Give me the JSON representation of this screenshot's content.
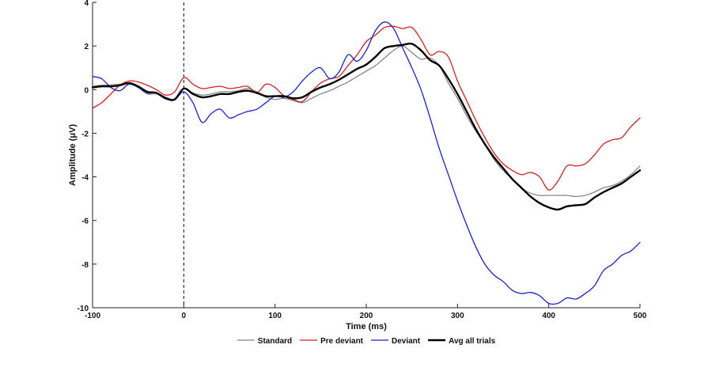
{
  "chart_data": {
    "type": "line",
    "xlabel": "Time (ms)",
    "ylabel": "Amplitude (μV)",
    "xlim": [
      -100,
      500
    ],
    "ylim": [
      -10,
      4
    ],
    "xticks": [
      -100,
      0,
      100,
      200,
      300,
      400,
      500
    ],
    "yticks": [
      -10,
      -8,
      -6,
      -4,
      -2,
      0,
      2,
      4
    ],
    "grid": false,
    "legend_position": "bottom",
    "reference_line": {
      "x": 0,
      "style": "dashed"
    },
    "x": [
      -100,
      -90,
      -80,
      -70,
      -60,
      -50,
      -40,
      -30,
      -20,
      -10,
      0,
      10,
      20,
      30,
      40,
      50,
      60,
      70,
      80,
      90,
      100,
      110,
      120,
      130,
      140,
      150,
      160,
      170,
      180,
      190,
      200,
      210,
      220,
      230,
      240,
      250,
      260,
      270,
      280,
      290,
      300,
      310,
      320,
      330,
      340,
      350,
      360,
      370,
      380,
      390,
      400,
      410,
      420,
      430,
      440,
      450,
      460,
      470,
      480,
      490,
      500
    ],
    "series": [
      {
        "name": "Standard",
        "color": "#888888",
        "width": 1.3,
        "values": [
          0.15,
          0.2,
          0.22,
          0.25,
          0.3,
          0.1,
          -0.2,
          -0.2,
          -0.4,
          -0.45,
          0.05,
          -0.15,
          -0.25,
          -0.2,
          -0.1,
          -0.1,
          -0.05,
          0.05,
          -0.1,
          -0.35,
          -0.45,
          -0.4,
          -0.5,
          -0.6,
          -0.4,
          -0.2,
          -0.05,
          0.15,
          0.35,
          0.6,
          0.85,
          1.1,
          1.45,
          1.8,
          2.0,
          1.7,
          1.4,
          1.45,
          1.1,
          0.3,
          -0.4,
          -1.2,
          -1.9,
          -2.5,
          -3.2,
          -3.7,
          -4.1,
          -4.5,
          -4.75,
          -4.85,
          -4.85,
          -4.85,
          -4.85,
          -4.9,
          -4.85,
          -4.7,
          -4.5,
          -4.4,
          -4.2,
          -3.9,
          -3.5
        ]
      },
      {
        "name": "Pre deviant",
        "color": "#d42020",
        "width": 1.3,
        "values": [
          -0.85,
          -0.6,
          -0.2,
          0.2,
          0.4,
          0.35,
          0.2,
          0.0,
          -0.25,
          -0.1,
          0.55,
          0.25,
          0.05,
          0.1,
          0.15,
          0.05,
          0.1,
          0.15,
          -0.15,
          0.25,
          0.1,
          -0.3,
          -0.45,
          -0.55,
          -0.1,
          0.3,
          0.5,
          0.6,
          1.1,
          1.6,
          2.2,
          2.5,
          2.85,
          2.9,
          2.8,
          2.85,
          2.3,
          1.6,
          1.75,
          1.5,
          0.4,
          -0.5,
          -1.4,
          -2.2,
          -2.9,
          -3.4,
          -3.7,
          -3.9,
          -3.8,
          -4.0,
          -4.6,
          -4.2,
          -3.5,
          -3.5,
          -3.4,
          -3.0,
          -2.5,
          -2.3,
          -2.2,
          -1.7,
          -1.3
        ]
      },
      {
        "name": "Deviant",
        "color": "#1a22cc",
        "width": 1.3,
        "values": [
          0.6,
          0.5,
          0.1,
          -0.05,
          0.25,
          0.1,
          -0.15,
          -0.15,
          -0.35,
          -0.45,
          -0.1,
          -0.6,
          -1.5,
          -1.1,
          -0.9,
          -1.3,
          -1.15,
          -1.0,
          -0.9,
          -0.6,
          -0.3,
          -0.35,
          -0.1,
          0.4,
          0.8,
          1.0,
          0.5,
          0.8,
          1.6,
          1.3,
          1.8,
          2.7,
          3.1,
          2.8,
          1.9,
          1.0,
          0.0,
          -1.3,
          -2.7,
          -3.9,
          -5.1,
          -6.2,
          -7.2,
          -8.0,
          -8.5,
          -8.8,
          -9.2,
          -9.35,
          -9.3,
          -9.45,
          -9.8,
          -9.8,
          -9.55,
          -9.6,
          -9.35,
          -9.0,
          -8.3,
          -8.0,
          -7.6,
          -7.4,
          -7.0
        ]
      },
      {
        "name": "Avg all trials",
        "color": "#000000",
        "width": 2.4,
        "values": [
          0.1,
          0.15,
          0.15,
          0.2,
          0.3,
          0.15,
          -0.1,
          -0.15,
          -0.4,
          -0.45,
          0.05,
          -0.2,
          -0.35,
          -0.3,
          -0.2,
          -0.2,
          -0.1,
          -0.05,
          -0.15,
          -0.3,
          -0.3,
          -0.3,
          -0.4,
          -0.35,
          -0.1,
          0.1,
          0.25,
          0.45,
          0.7,
          0.95,
          1.15,
          1.5,
          1.9,
          2.0,
          2.05,
          2.1,
          1.8,
          1.35,
          1.1,
          0.5,
          -0.2,
          -1.0,
          -1.8,
          -2.5,
          -3.1,
          -3.6,
          -4.1,
          -4.5,
          -4.9,
          -5.2,
          -5.4,
          -5.5,
          -5.35,
          -5.3,
          -5.25,
          -4.95,
          -4.7,
          -4.5,
          -4.3,
          -4.0,
          -3.7
        ]
      }
    ]
  }
}
